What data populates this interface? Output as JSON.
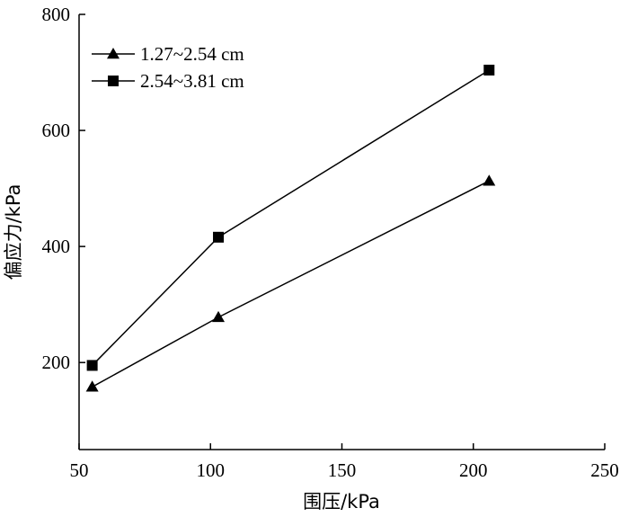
{
  "chart_data": {
    "type": "line",
    "title": "",
    "xlabel": "围压/kPa",
    "ylabel": "偏应力/kPa",
    "xlim": [
      50,
      250
    ],
    "ylim": [
      50,
      800
    ],
    "xticks": [
      "50",
      "100",
      "150",
      "200",
      "250"
    ],
    "yticks": [
      "200",
      "400",
      "600",
      "800"
    ],
    "grid": false,
    "legend_position": "top-left",
    "series": [
      {
        "name": "1.27~2.54 cm",
        "marker": "triangle",
        "color": "#000000",
        "x": [
          55,
          103,
          206
        ],
        "y": [
          158,
          278,
          513
        ]
      },
      {
        "name": "2.54~3.81 cm",
        "marker": "square",
        "color": "#000000",
        "x": [
          55,
          103,
          206
        ],
        "y": [
          195,
          416,
          704
        ]
      }
    ]
  }
}
